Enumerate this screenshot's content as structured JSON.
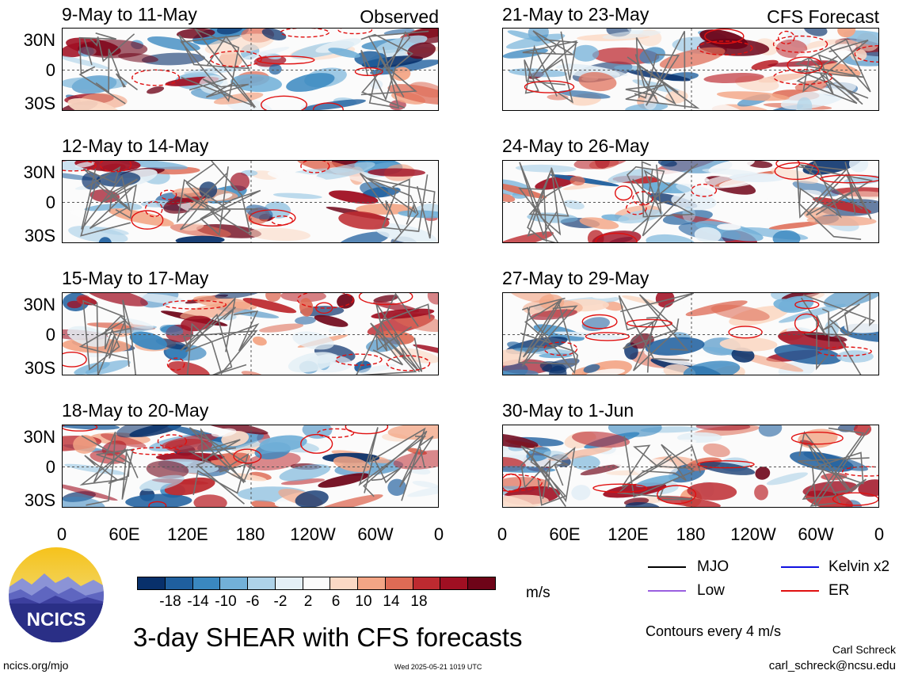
{
  "panels": [
    {
      "title": "9-May to 11-May",
      "tag": "Observed"
    },
    {
      "title": "12-May to 14-May",
      "tag": ""
    },
    {
      "title": "15-May to 17-May",
      "tag": ""
    },
    {
      "title": "18-May to 20-May",
      "tag": ""
    },
    {
      "title": "21-May to 23-May",
      "tag": "CFS Forecast"
    },
    {
      "title": "24-May to 26-May",
      "tag": ""
    },
    {
      "title": "27-May to 29-May",
      "tag": ""
    },
    {
      "title": "30-May to 1-Jun",
      "tag": ""
    }
  ],
  "lat_ticks": [
    "30N",
    "0",
    "30S"
  ],
  "lon_ticks": [
    "0",
    "60E",
    "120E",
    "180",
    "120W",
    "60W",
    "0"
  ],
  "colorbar": {
    "labels": [
      "-18",
      "-14",
      "-10",
      "-6",
      "-2",
      "2",
      "6",
      "10",
      "14",
      "18"
    ],
    "colors": [
      "#08306b",
      "#1f5f9e",
      "#3a88c0",
      "#72b0d8",
      "#aed2e8",
      "#e4eff6",
      "#fbfbfb",
      "#fbd9c5",
      "#f3a585",
      "#de6b55",
      "#bd2a30",
      "#a00f22",
      "#6e0418"
    ],
    "unit": "m/s"
  },
  "legend": [
    {
      "label": "MJO",
      "color": "#000000"
    },
    {
      "label": "Kelvin x2",
      "color": "#1010e0"
    },
    {
      "label": "Low",
      "color": "#9a5fe0"
    },
    {
      "label": "ER",
      "color": "#e01010"
    }
  ],
  "main_title": "3-day SHEAR with CFS forecasts",
  "contour_note": "Contours every 4 m/s",
  "author": "Carl Schreck",
  "email": "carl_schreck@ncsu.edu",
  "website": "ncics.org/mjo",
  "timestamp": "Wed 2025-05-21 1019 UTC",
  "logo_text": "NCICS"
}
